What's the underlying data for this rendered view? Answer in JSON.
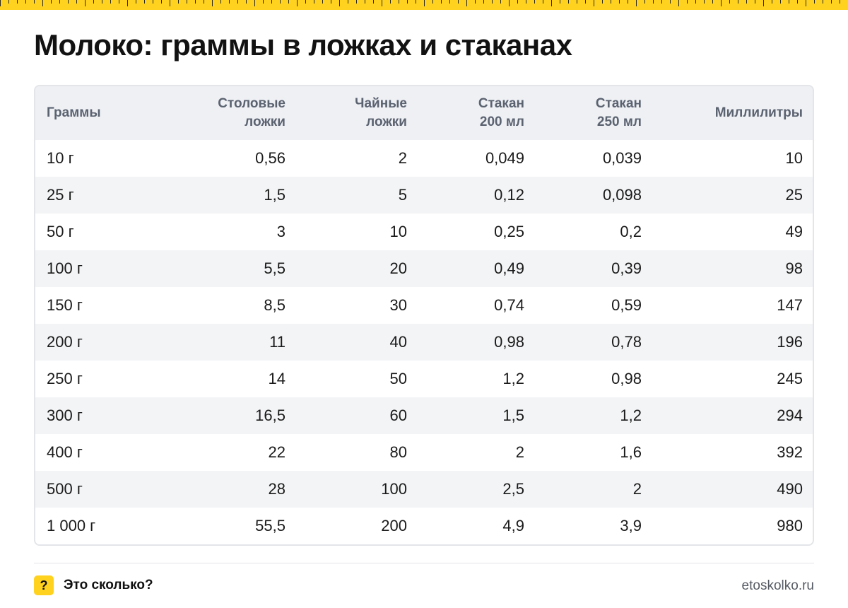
{
  "title": "Молоко: граммы в ложках и стаканах",
  "table": {
    "headers": [
      {
        "line1": "Граммы",
        "line2": ""
      },
      {
        "line1": "Столовые",
        "line2": "ложки"
      },
      {
        "line1": "Чайные",
        "line2": "ложки"
      },
      {
        "line1": "Стакан",
        "line2": "200 мл"
      },
      {
        "line1": "Стакан",
        "line2": "250 мл"
      },
      {
        "line1": "Миллилитры",
        "line2": ""
      }
    ],
    "rows": [
      [
        "10 г",
        "0,56",
        "2",
        "0,049",
        "0,039",
        "10"
      ],
      [
        "25 г",
        "1,5",
        "5",
        "0,12",
        "0,098",
        "25"
      ],
      [
        "50 г",
        "3",
        "10",
        "0,25",
        "0,2",
        "49"
      ],
      [
        "100 г",
        "5,5",
        "20",
        "0,49",
        "0,39",
        "98"
      ],
      [
        "150 г",
        "8,5",
        "30",
        "0,74",
        "0,59",
        "147"
      ],
      [
        "200 г",
        "11",
        "40",
        "0,98",
        "0,78",
        "196"
      ],
      [
        "250 г",
        "14",
        "50",
        "1,2",
        "0,98",
        "245"
      ],
      [
        "300 г",
        "16,5",
        "60",
        "1,5",
        "1,2",
        "294"
      ],
      [
        "400 г",
        "22",
        "80",
        "2",
        "1,6",
        "392"
      ],
      [
        "500 г",
        "28",
        "100",
        "2,5",
        "2",
        "490"
      ],
      [
        "1 000 г",
        "55,5",
        "200",
        "4,9",
        "3,9",
        "980"
      ]
    ]
  },
  "footer": {
    "badge_symbol": "?",
    "brand": "Это сколько?",
    "site": "etoskolko.ru"
  },
  "colors": {
    "accent": "#ffd21f",
    "header_bg": "#eef0f4",
    "stripe_bg": "#f3f4f6",
    "header_text": "#5b6270"
  }
}
